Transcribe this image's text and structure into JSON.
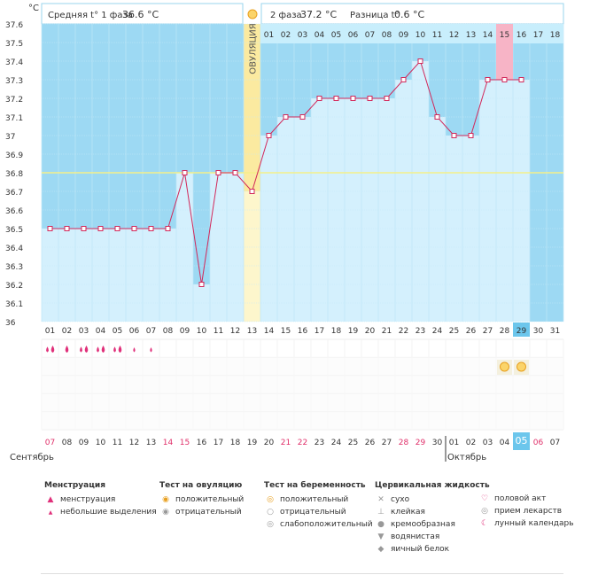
{
  "chart_data": {
    "type": "line",
    "title": "",
    "ylabel": "°C",
    "ylim": [
      36.0,
      37.6
    ],
    "y_ticks": [
      "37.6",
      "37.5",
      "37.4",
      "37.3",
      "37.2",
      "37.1",
      "37",
      "36.9",
      "36.8",
      "36.7",
      "36.6",
      "36.5",
      "36.4",
      "36.3",
      "36.2",
      "36.1",
      "36"
    ],
    "coverline": 36.8,
    "ovulation_day_index": 12,
    "ovulation_label": "ОВУЛЯЦИЯ",
    "highlight_phase2_day": 15,
    "cycle_days": [
      "01",
      "02",
      "03",
      "04",
      "05",
      "06",
      "07",
      "08",
      "09",
      "10",
      "11",
      "12",
      "13",
      "14",
      "15",
      "16",
      "17",
      "18",
      "19",
      "20",
      "21",
      "22",
      "23",
      "24",
      "25",
      "26",
      "27",
      "28",
      "29",
      "30",
      "31"
    ],
    "current_cycle_day_index": 28,
    "phase2_days": [
      "01",
      "02",
      "03",
      "04",
      "05",
      "06",
      "07",
      "08",
      "09",
      "10",
      "11",
      "12",
      "13",
      "14",
      "15",
      "16",
      "17",
      "18"
    ],
    "temperatures": [
      36.5,
      36.5,
      36.5,
      36.5,
      36.5,
      36.5,
      36.5,
      36.5,
      36.8,
      36.2,
      36.8,
      36.8,
      36.7,
      37.0,
      37.1,
      37.1,
      37.2,
      37.2,
      37.2,
      37.2,
      37.2,
      37.3,
      37.4,
      37.1,
      37.0,
      37.0,
      37.3,
      37.3,
      37.3
    ],
    "dates": [
      "07",
      "08",
      "09",
      "10",
      "11",
      "12",
      "13",
      "14",
      "15",
      "16",
      "17",
      "18",
      "19",
      "20",
      "21",
      "22",
      "23",
      "24",
      "25",
      "26",
      "27",
      "28",
      "29",
      "30",
      "01",
      "02",
      "03",
      "04",
      "05",
      "06",
      "07"
    ],
    "red_date_indices": [
      0,
      7,
      8,
      14,
      15,
      21,
      22,
      29
    ],
    "month_left": "Сентябрь",
    "month_right": "Октябрь"
  },
  "header": {
    "phase1_label": "Средняя t° 1 фаза",
    "phase1_value": "36.6 °C",
    "phase2_label": "2 фаза",
    "phase2_value": "37.2 °C",
    "diff_label": "Разница t°",
    "diff_value": "0.6 °C"
  },
  "markers": {
    "menstruation_large_days": [
      0,
      1,
      2,
      3,
      4,
      5
    ],
    "menstruation_small_days": [
      5,
      6
    ],
    "menstruation_large_count_days": [
      0,
      2,
      3,
      4
    ],
    "ovulation_positive_days": [
      27,
      28
    ]
  },
  "legend": {
    "menstruation": {
      "title": "Менструация",
      "items": [
        "менструация",
        "небольшие выделения"
      ]
    },
    "ovulation_test": {
      "title": "Тест на овуляцию",
      "items": [
        "положительный",
        "отрицательный"
      ]
    },
    "pregnancy_test": {
      "title": "Тест на беременность",
      "items": [
        "положительный",
        "отрицательный",
        "слабоположительный"
      ]
    },
    "cervical": {
      "title": "Цервикальная жидкость",
      "items": [
        "сухо",
        "клейкая",
        "кремообразная",
        "водянистая",
        "яичный белок"
      ]
    },
    "other": {
      "items": [
        "половой акт",
        "прием лекарств",
        "лунный календарь"
      ]
    }
  }
}
